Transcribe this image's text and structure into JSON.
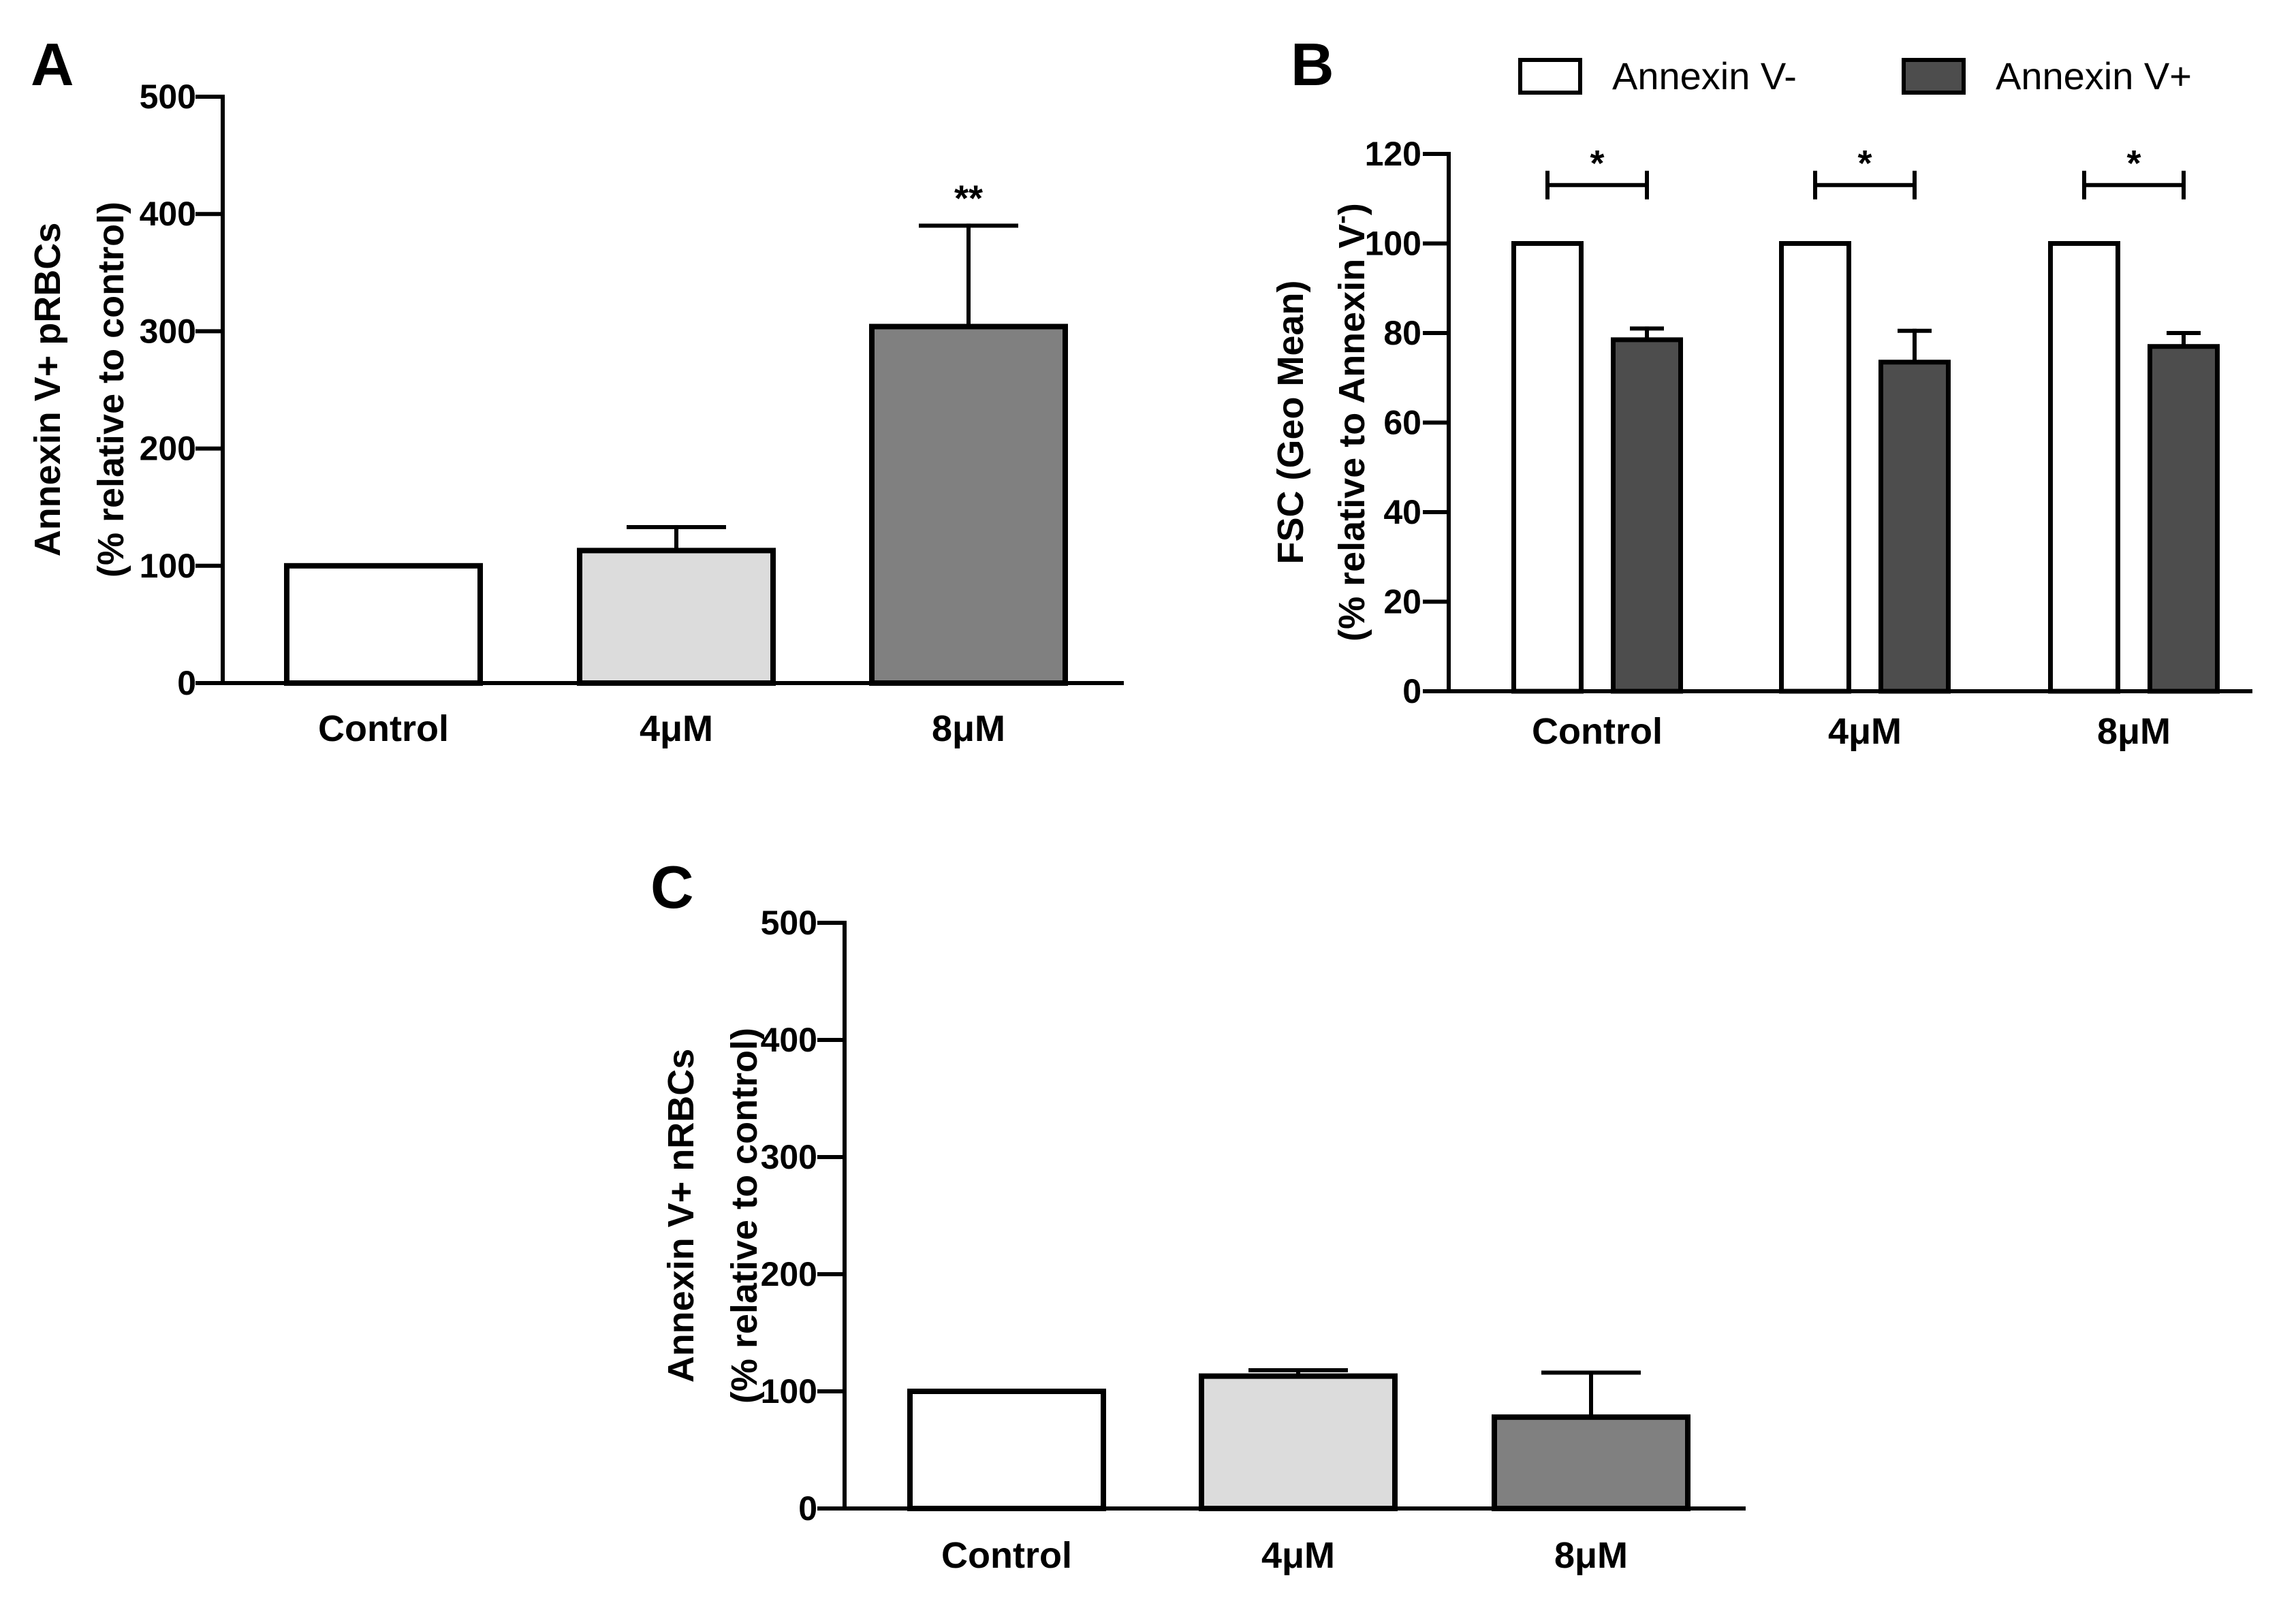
{
  "chart_data": [
    {
      "panel": "A",
      "type": "bar",
      "categories": [
        "Control",
        "4μM",
        "8μM"
      ],
      "values": [
        100,
        113,
        304
      ],
      "errors": [
        0,
        20,
        86
      ],
      "bar_colors": [
        "#ffffff",
        "#dcdcdc",
        "#808080"
      ],
      "significance": [
        "",
        "",
        "**"
      ],
      "ylabel_line1": "Annexin V+ pRBCs",
      "ylabel_line2": "(% relative to control)",
      "ylim": [
        0,
        500
      ],
      "yticks": [
        "0",
        "100",
        "200",
        "300",
        "400",
        "500"
      ]
    },
    {
      "panel": "B",
      "type": "bar",
      "categories": [
        "Control",
        "4μM",
        "8μM"
      ],
      "series": [
        {
          "name": "Annexin V-",
          "color": "#ffffff",
          "values": [
            100,
            100,
            100
          ],
          "errors": [
            0,
            0,
            0
          ]
        },
        {
          "name": "Annexin V+",
          "color": "#4d4d4d",
          "values": [
            78.5,
            73.5,
            77
          ],
          "errors": [
            2.5,
            7,
            3
          ]
        }
      ],
      "significance": [
        "*",
        "*",
        "*"
      ],
      "ylabel_line1": "FSC (Geo Mean)",
      "ylabel_line2": "(% relative to Annexin V",
      "ylabel_sup": "-",
      "ylabel_end": ")",
      "ylim": [
        0,
        120
      ],
      "yticks": [
        "0",
        "20",
        "40",
        "60",
        "80",
        "100",
        "120"
      ],
      "legend_position": "top"
    },
    {
      "panel": "C",
      "type": "bar",
      "categories": [
        "Control",
        "4μM",
        "8μM"
      ],
      "values": [
        100,
        113,
        78
      ],
      "errors": [
        0,
        5,
        38
      ],
      "bar_colors": [
        "#ffffff",
        "#dcdcdc",
        "#808080"
      ],
      "significance": [
        "",
        "",
        ""
      ],
      "ylabel_line1": "Annexin V+ nRBCs",
      "ylabel_line2": "(% relative to control)",
      "ylim": [
        0,
        500
      ],
      "yticks": [
        "0",
        "100",
        "200",
        "300",
        "400",
        "500"
      ]
    }
  ]
}
